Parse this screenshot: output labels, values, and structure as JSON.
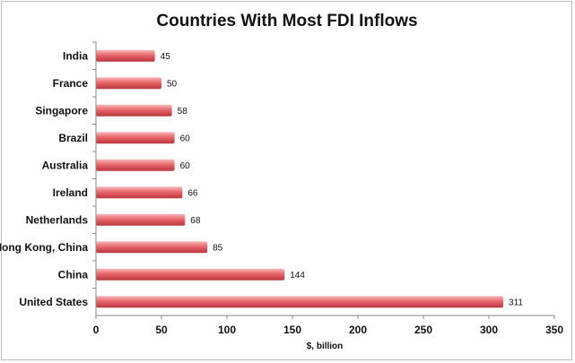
{
  "chart_data": {
    "type": "bar",
    "orientation": "horizontal",
    "title": "Countries With Most FDI Inflows",
    "xlabel": "$, billion",
    "ylabel": "",
    "xlim": [
      0,
      350
    ],
    "x_ticks": [
      "0",
      "50",
      "100",
      "150",
      "200",
      "250",
      "300",
      "350"
    ],
    "grid": false,
    "legend": "none",
    "categories": [
      "India",
      "France",
      "Singapore",
      "Brazil",
      "Australia",
      "Ireland",
      "Netherlands",
      "Hong Kong, China",
      "China",
      "United States"
    ],
    "values": [
      45,
      50,
      58,
      60,
      60,
      66,
      68,
      85,
      144,
      311
    ],
    "bar_color": "#e8666b"
  }
}
